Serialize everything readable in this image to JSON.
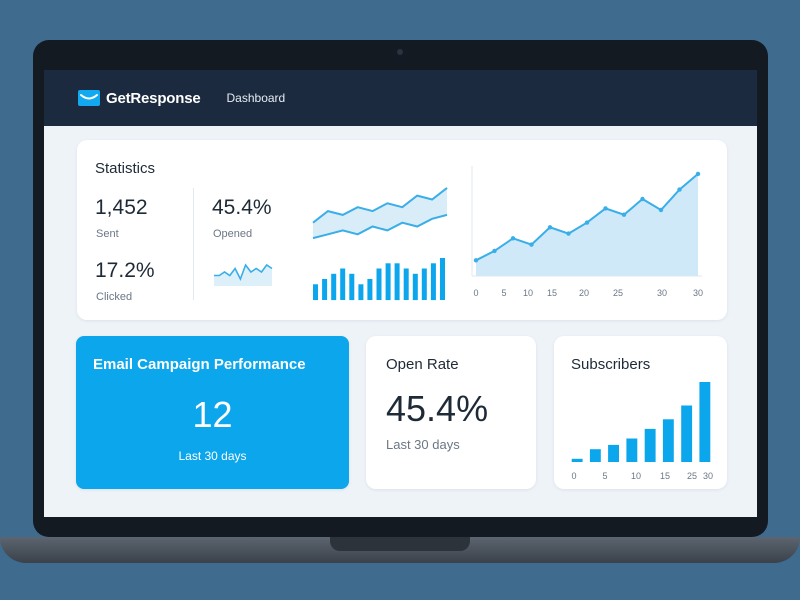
{
  "header": {
    "brand": "GetResponse",
    "nav_item": "Dashboard"
  },
  "statistics": {
    "title": "Statistics",
    "sent": {
      "value": "1,452",
      "label": "Sent"
    },
    "opened": {
      "value": "45.4%",
      "label": "Opened"
    },
    "clicked": {
      "value": "17.2%",
      "label": "Clicked"
    }
  },
  "email_campaign": {
    "title": "Email Campaign Performance",
    "value": "12",
    "subtitle": "Last 30 days"
  },
  "open_rate": {
    "title": "Open Rate",
    "value": "45.4%",
    "subtitle": "Last 30 days"
  },
  "subscribers": {
    "title": "Subscribers"
  },
  "colors": {
    "accent": "#0ba6ec",
    "header_bg": "#1b2a3e",
    "line": "#3aaee8",
    "area": "#cfe9f8"
  },
  "chart_data": [
    {
      "type": "line",
      "name": "opened-sparkline",
      "series": [
        {
          "values": [
            5,
            8,
            7,
            9,
            8,
            10,
            9,
            12,
            11,
            14
          ]
        },
        {
          "values": [
            1,
            2,
            3,
            2,
            4,
            3,
            5,
            4,
            6,
            7
          ]
        }
      ]
    },
    {
      "type": "line",
      "name": "clicked-sparkline",
      "series": [
        {
          "values": [
            3,
            3,
            4,
            3,
            5,
            2,
            6,
            4,
            5,
            4,
            6,
            5
          ]
        }
      ]
    },
    {
      "type": "bar",
      "name": "mini-bars",
      "values": [
        3,
        4,
        5,
        6,
        5,
        3,
        4,
        6,
        7,
        7,
        6,
        5,
        6,
        7,
        8
      ]
    },
    {
      "type": "area",
      "name": "statistics-trend",
      "x_ticks": [
        "0",
        "5",
        "10",
        "15",
        "20",
        "25",
        "30",
        "30"
      ],
      "values": [
        1.0,
        1.6,
        2.4,
        2.0,
        3.1,
        2.7,
        3.4,
        4.3,
        3.9,
        4.9,
        4.2,
        5.5,
        6.5
      ]
    },
    {
      "type": "bar",
      "name": "subscribers",
      "x_ticks": [
        "0",
        "5",
        "10",
        "15",
        "25",
        "30"
      ],
      "values": [
        0.3,
        1.2,
        1.6,
        2.2,
        3.1,
        4.0,
        5.3,
        7.5
      ]
    }
  ]
}
